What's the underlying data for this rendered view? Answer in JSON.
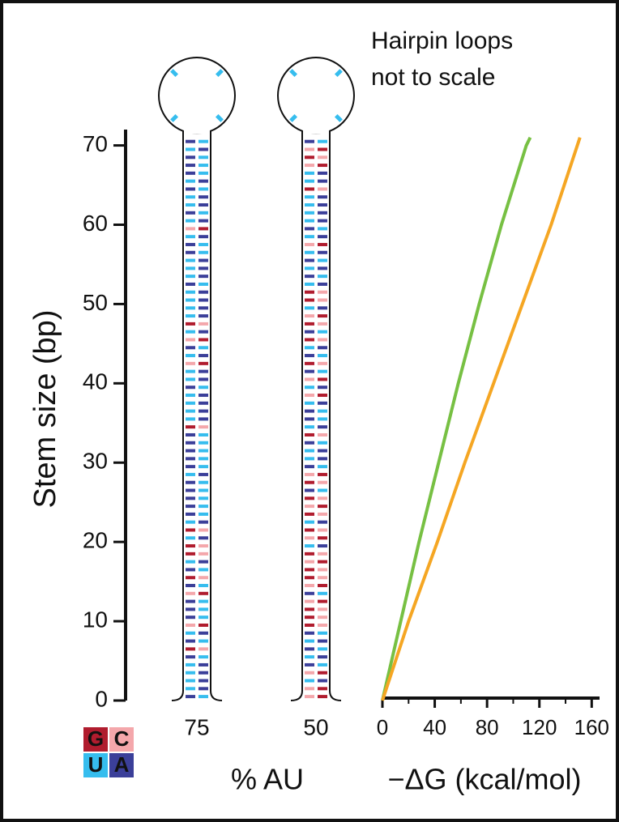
{
  "chart_data": {
    "type": "line",
    "annotation": [
      "Hairpin loops",
      "not to scale"
    ],
    "ylabel": "Stem size (bp)",
    "ylim": [
      0,
      72
    ],
    "yticks": [
      0,
      10,
      20,
      30,
      40,
      50,
      60,
      70
    ],
    "hairpin_au": [
      75,
      50
    ],
    "hairpin_xlabel": "% AU",
    "xlabel": "−ΔG (kcal/mol)",
    "xlim": [
      0,
      166
    ],
    "xticks": [
      0,
      40,
      80,
      120,
      160
    ],
    "xminorticks": [
      20,
      60,
      100,
      140
    ],
    "series": [
      {
        "color": "#77c043",
        "x": [
          0,
          14,
          28,
          43,
          58,
          74,
          91,
          110,
          113
        ],
        "y": [
          0,
          10,
          20,
          30,
          40,
          50,
          60,
          70,
          71
        ]
      },
      {
        "color": "#f5a623",
        "x": [
          0,
          20,
          42,
          63,
          85,
          107,
          129,
          149,
          151
        ],
        "y": [
          0,
          10,
          20,
          30,
          40,
          50,
          60,
          70,
          71
        ]
      }
    ],
    "base_legend": [
      {
        "label": "G",
        "color": "#b01c2e"
      },
      {
        "label": "C",
        "color": "#f4a7ab"
      },
      {
        "label": "U",
        "color": "#36bdee"
      },
      {
        "label": "A",
        "color": "#3b3f99"
      }
    ]
  }
}
